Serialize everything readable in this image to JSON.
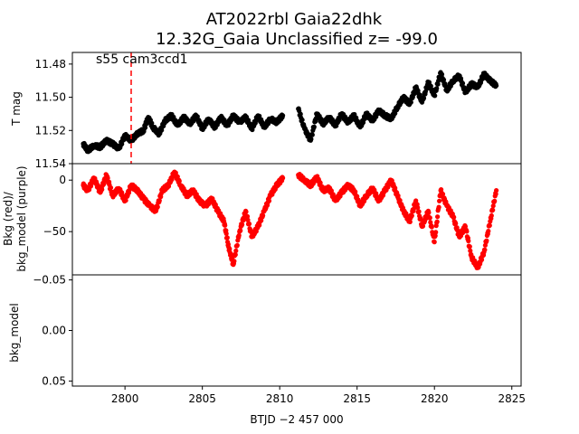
{
  "title": {
    "line1": "AT2022rbl  Gaia22dhk",
    "line2": "12.32G_Gaia Unclassified z= -99.0"
  },
  "chart_data": [
    {
      "type": "scatter",
      "panel": "top",
      "ylabel": "T mag",
      "xlim": [
        2796.6,
        2825.6
      ],
      "ylim": [
        11.54,
        11.473
      ],
      "y_inverted": true,
      "yticks": [
        11.48,
        11.5,
        11.52,
        11.54
      ],
      "ytick_labels": [
        "11.48",
        "11.50",
        "11.52",
        "11.54"
      ],
      "annotation": "s55 cam3ccd1",
      "marker_line_x": 2800.4,
      "marker_line_color": "#ff0000",
      "series": [
        {
          "color": "#000000",
          "x": [
            2797.3,
            2797.6,
            2798.0,
            2798.4,
            2798.8,
            2799.2,
            2799.6,
            2800.0,
            2800.4,
            2800.8,
            2801.2,
            2801.5,
            2801.8,
            2802.2,
            2802.6,
            2803.0,
            2803.4,
            2803.8,
            2804.2,
            2804.6,
            2805.0,
            2805.4,
            2805.8,
            2806.2,
            2806.6,
            2807.0,
            2807.4,
            2807.8,
            2808.2,
            2808.6,
            2809.0,
            2809.4,
            2809.8,
            2810.2,
            2811.2,
            2811.6,
            2812.0,
            2812.4,
            2812.8,
            2813.2,
            2813.6,
            2814.0,
            2814.4,
            2814.8,
            2815.2,
            2815.6,
            2816.0,
            2816.4,
            2816.8,
            2817.2,
            2817.6,
            2818.0,
            2818.4,
            2818.8,
            2819.2,
            2819.6,
            2820.0,
            2820.4,
            2820.8,
            2821.2,
            2821.6,
            2822.0,
            2822.4,
            2822.8,
            2823.2,
            2823.6,
            2824.0
          ],
          "y": [
            11.528,
            11.532,
            11.529,
            11.53,
            11.526,
            11.528,
            11.531,
            11.523,
            11.526,
            11.522,
            11.52,
            11.512,
            11.518,
            11.522,
            11.514,
            11.511,
            11.517,
            11.512,
            11.516,
            11.511,
            11.519,
            11.513,
            11.518,
            11.512,
            11.517,
            11.511,
            11.515,
            11.512,
            11.519,
            11.511,
            11.518,
            11.513,
            11.515,
            11.511,
            11.507,
            11.519,
            11.526,
            11.51,
            11.516,
            11.512,
            11.517,
            11.51,
            11.515,
            11.511,
            11.518,
            11.51,
            11.514,
            11.508,
            11.511,
            11.513,
            11.506,
            11.5,
            11.504,
            11.494,
            11.503,
            11.491,
            11.499,
            11.485,
            11.496,
            11.49,
            11.487,
            11.497,
            11.492,
            11.494,
            11.486,
            11.49,
            11.493
          ]
        }
      ]
    },
    {
      "type": "scatter",
      "panel": "middle",
      "ylabel_line1": "Bkg (red)/",
      "ylabel_line2": "bkg_model (purple)",
      "xlim": [
        2796.6,
        2825.6
      ],
      "ylim": [
        -92,
        16
      ],
      "yticks": [
        0,
        -50
      ],
      "ytick_labels": [
        "0",
        "−50"
      ],
      "series": [
        {
          "color": "#ff0000",
          "x": [
            2797.3,
            2797.6,
            2798.0,
            2798.4,
            2798.8,
            2799.2,
            2799.6,
            2800.0,
            2800.4,
            2800.8,
            2801.2,
            2801.6,
            2802.0,
            2802.4,
            2802.8,
            2803.2,
            2803.6,
            2804.0,
            2804.4,
            2804.8,
            2805.2,
            2805.6,
            2806.0,
            2806.4,
            2806.7,
            2807.0,
            2807.4,
            2807.8,
            2808.2,
            2808.6,
            2809.0,
            2809.4,
            2809.8,
            2810.2,
            2811.2,
            2811.6,
            2812.0,
            2812.4,
            2812.8,
            2813.2,
            2813.6,
            2814.0,
            2814.4,
            2814.8,
            2815.2,
            2815.6,
            2816.0,
            2816.4,
            2816.8,
            2817.2,
            2817.6,
            2818.0,
            2818.4,
            2818.8,
            2819.2,
            2819.6,
            2820.0,
            2820.4,
            2820.8,
            2821.2,
            2821.6,
            2822.0,
            2822.4,
            2822.8,
            2823.2,
            2823.6,
            2824.0
          ],
          "y": [
            -5,
            -10,
            2,
            -12,
            5,
            -15,
            -8,
            -20,
            -5,
            -10,
            -18,
            -25,
            -30,
            -10,
            -5,
            8,
            -5,
            -15,
            -10,
            -20,
            -25,
            -18,
            -30,
            -40,
            -65,
            -82,
            -50,
            -30,
            -55,
            -45,
            -30,
            -15,
            -5,
            2,
            5,
            0,
            -5,
            3,
            -10,
            -8,
            -20,
            -12,
            -5,
            -10,
            -25,
            -15,
            -8,
            -20,
            -10,
            0,
            -15,
            -30,
            -40,
            -20,
            -45,
            -30,
            -60,
            -10,
            -25,
            -35,
            -55,
            -45,
            -75,
            -85,
            -70,
            -40,
            -10
          ]
        }
      ]
    },
    {
      "type": "scatter",
      "panel": "bottom",
      "ylabel": "bkg_model",
      "xlabel": "BTJD −2 457 000",
      "xlim": [
        2796.6,
        2825.6
      ],
      "ylim": [
        0.055,
        -0.055
      ],
      "yticks": [
        -0.05,
        0.0,
        0.05
      ],
      "ytick_labels": [
        "−0.05",
        "0.00",
        "0.05"
      ],
      "xticks": [
        2800,
        2805,
        2810,
        2815,
        2820,
        2825
      ],
      "xtick_labels": [
        "2800",
        "2805",
        "2810",
        "2815",
        "2820",
        "2825"
      ],
      "series": []
    }
  ]
}
